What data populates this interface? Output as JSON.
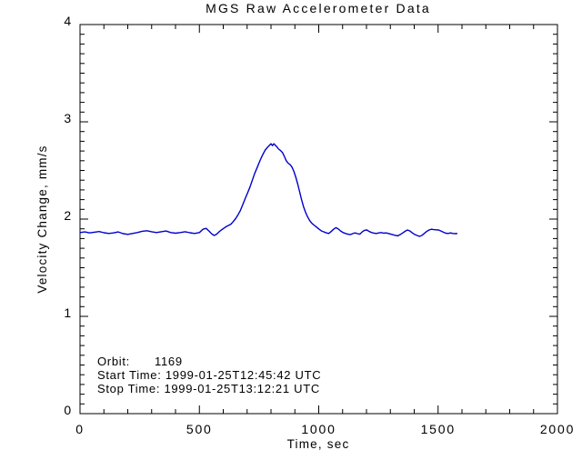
{
  "figure": {
    "background_color": "#ffffff",
    "axis_color": "#000000",
    "text_color": "#000000"
  },
  "chart_data": {
    "type": "line",
    "title": "MGS Raw Accelerometer Data",
    "xlabel": "Time, sec",
    "ylabel": "Velocity Change, mm/s",
    "xlim": [
      0,
      2000
    ],
    "ylim": [
      0,
      4
    ],
    "x_major_ticks": [
      0,
      500,
      1000,
      1500,
      2000
    ],
    "x_tick_labels": [
      "0",
      "500",
      "1000",
      "1500",
      "2000"
    ],
    "x_minor_step": 100,
    "y_major_ticks": [
      0,
      1,
      2,
      3,
      4
    ],
    "y_tick_labels": [
      "0",
      "1",
      "2",
      "3",
      "4"
    ],
    "y_minor_step": 0.1,
    "grid": false,
    "legend": "none",
    "line_color": "#0000cc",
    "series": [
      {
        "name": "velocity-change",
        "points": [
          [
            0,
            1.862
          ],
          [
            20,
            1.868
          ],
          [
            40,
            1.858
          ],
          [
            60,
            1.865
          ],
          [
            80,
            1.872
          ],
          [
            100,
            1.86
          ],
          [
            120,
            1.852
          ],
          [
            140,
            1.858
          ],
          [
            160,
            1.868
          ],
          [
            180,
            1.85
          ],
          [
            200,
            1.843
          ],
          [
            220,
            1.852
          ],
          [
            240,
            1.862
          ],
          [
            260,
            1.875
          ],
          [
            280,
            1.88
          ],
          [
            300,
            1.87
          ],
          [
            320,
            1.862
          ],
          [
            340,
            1.87
          ],
          [
            360,
            1.878
          ],
          [
            380,
            1.862
          ],
          [
            400,
            1.855
          ],
          [
            420,
            1.862
          ],
          [
            440,
            1.87
          ],
          [
            460,
            1.86
          ],
          [
            480,
            1.852
          ],
          [
            500,
            1.862
          ],
          [
            515,
            1.895
          ],
          [
            528,
            1.905
          ],
          [
            540,
            1.878
          ],
          [
            552,
            1.848
          ],
          [
            562,
            1.832
          ],
          [
            572,
            1.845
          ],
          [
            582,
            1.868
          ],
          [
            592,
            1.888
          ],
          [
            602,
            1.905
          ],
          [
            612,
            1.922
          ],
          [
            622,
            1.935
          ],
          [
            632,
            1.948
          ],
          [
            642,
            1.975
          ],
          [
            652,
            2.005
          ],
          [
            662,
            2.045
          ],
          [
            672,
            2.09
          ],
          [
            682,
            2.15
          ],
          [
            692,
            2.21
          ],
          [
            702,
            2.27
          ],
          [
            712,
            2.33
          ],
          [
            722,
            2.4
          ],
          [
            732,
            2.47
          ],
          [
            742,
            2.53
          ],
          [
            752,
            2.59
          ],
          [
            760,
            2.635
          ],
          [
            768,
            2.675
          ],
          [
            776,
            2.71
          ],
          [
            784,
            2.735
          ],
          [
            792,
            2.755
          ],
          [
            800,
            2.775
          ],
          [
            806,
            2.755
          ],
          [
            812,
            2.775
          ],
          [
            818,
            2.76
          ],
          [
            824,
            2.745
          ],
          [
            832,
            2.72
          ],
          [
            840,
            2.705
          ],
          [
            848,
            2.685
          ],
          [
            856,
            2.645
          ],
          [
            864,
            2.6
          ],
          [
            872,
            2.575
          ],
          [
            880,
            2.56
          ],
          [
            888,
            2.535
          ],
          [
            896,
            2.49
          ],
          [
            904,
            2.43
          ],
          [
            912,
            2.36
          ],
          [
            920,
            2.28
          ],
          [
            928,
            2.2
          ],
          [
            936,
            2.13
          ],
          [
            944,
            2.075
          ],
          [
            952,
            2.03
          ],
          [
            962,
            1.985
          ],
          [
            972,
            1.955
          ],
          [
            982,
            1.935
          ],
          [
            992,
            1.915
          ],
          [
            1002,
            1.895
          ],
          [
            1012,
            1.878
          ],
          [
            1022,
            1.868
          ],
          [
            1032,
            1.858
          ],
          [
            1042,
            1.852
          ],
          [
            1052,
            1.872
          ],
          [
            1062,
            1.895
          ],
          [
            1072,
            1.912
          ],
          [
            1082,
            1.898
          ],
          [
            1092,
            1.878
          ],
          [
            1102,
            1.862
          ],
          [
            1112,
            1.852
          ],
          [
            1122,
            1.845
          ],
          [
            1132,
            1.84
          ],
          [
            1142,
            1.85
          ],
          [
            1152,
            1.858
          ],
          [
            1162,
            1.85
          ],
          [
            1172,
            1.845
          ],
          [
            1182,
            1.868
          ],
          [
            1192,
            1.885
          ],
          [
            1202,
            1.888
          ],
          [
            1212,
            1.872
          ],
          [
            1222,
            1.862
          ],
          [
            1232,
            1.855
          ],
          [
            1242,
            1.852
          ],
          [
            1252,
            1.858
          ],
          [
            1262,
            1.862
          ],
          [
            1272,
            1.855
          ],
          [
            1282,
            1.858
          ],
          [
            1292,
            1.852
          ],
          [
            1302,
            1.845
          ],
          [
            1312,
            1.838
          ],
          [
            1322,
            1.832
          ],
          [
            1332,
            1.828
          ],
          [
            1342,
            1.842
          ],
          [
            1352,
            1.858
          ],
          [
            1362,
            1.875
          ],
          [
            1372,
            1.888
          ],
          [
            1382,
            1.878
          ],
          [
            1392,
            1.858
          ],
          [
            1402,
            1.842
          ],
          [
            1412,
            1.832
          ],
          [
            1422,
            1.822
          ],
          [
            1432,
            1.832
          ],
          [
            1442,
            1.852
          ],
          [
            1452,
            1.872
          ],
          [
            1462,
            1.888
          ],
          [
            1472,
            1.895
          ],
          [
            1482,
            1.892
          ],
          [
            1492,
            1.89
          ],
          [
            1502,
            1.888
          ],
          [
            1512,
            1.878
          ],
          [
            1522,
            1.865
          ],
          [
            1532,
            1.855
          ],
          [
            1542,
            1.852
          ],
          [
            1552,
            1.858
          ],
          [
            1562,
            1.852
          ],
          [
            1572,
            1.85
          ],
          [
            1581,
            1.852
          ]
        ]
      }
    ],
    "annotations": {
      "orbit_label": "Orbit:",
      "orbit_value": "1169",
      "start_time": "Start Time: 1999-01-25T12:45:42 UTC",
      "stop_time": "Stop Time: 1999-01-25T13:12:21 UTC"
    }
  }
}
